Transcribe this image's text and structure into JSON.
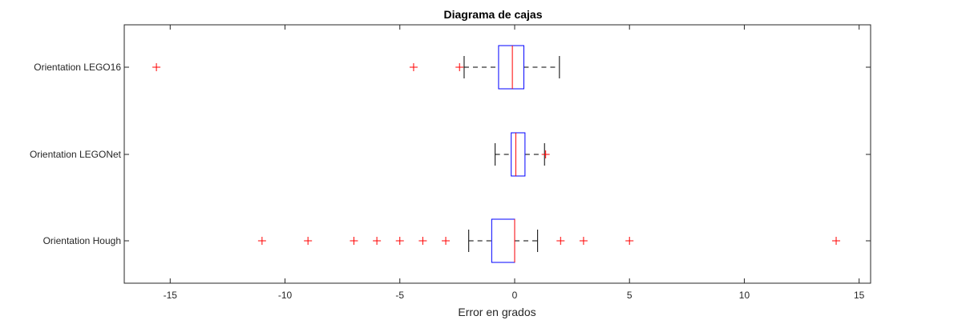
{
  "chart_data": {
    "type": "boxplot",
    "orientation": "horizontal",
    "title": "Diagrama de cajas",
    "xlabel": "Error en grados",
    "ylabel": "",
    "xlim": [
      -17,
      15.5
    ],
    "xticks": [
      -15,
      -10,
      -5,
      0,
      5,
      10,
      15
    ],
    "grid": false,
    "colors": {
      "box": "#0000ff",
      "median": "#ff0000",
      "outlier": "#ff0000",
      "whisker": "#000000",
      "axis": "#262626"
    },
    "series": [
      {
        "name": "Orientation LEGO16",
        "min": -2.2,
        "q1": -0.7,
        "median": -0.1,
        "q3": 0.4,
        "max": 1.95,
        "outliers": [
          -15.6,
          -4.4,
          -2.4
        ]
      },
      {
        "name": "Orientation LEGONet",
        "min": -0.85,
        "q1": -0.15,
        "median": 0.05,
        "q3": 0.45,
        "max": 1.3,
        "outliers": [
          1.35
        ]
      },
      {
        "name": "Orientation Hough",
        "min": -2,
        "q1": -1,
        "median": 0,
        "q3": 0,
        "max": 1,
        "outliers": [
          -11,
          -9,
          -7,
          -6,
          -5,
          -4,
          -3,
          2,
          3,
          5,
          14
        ]
      }
    ]
  }
}
